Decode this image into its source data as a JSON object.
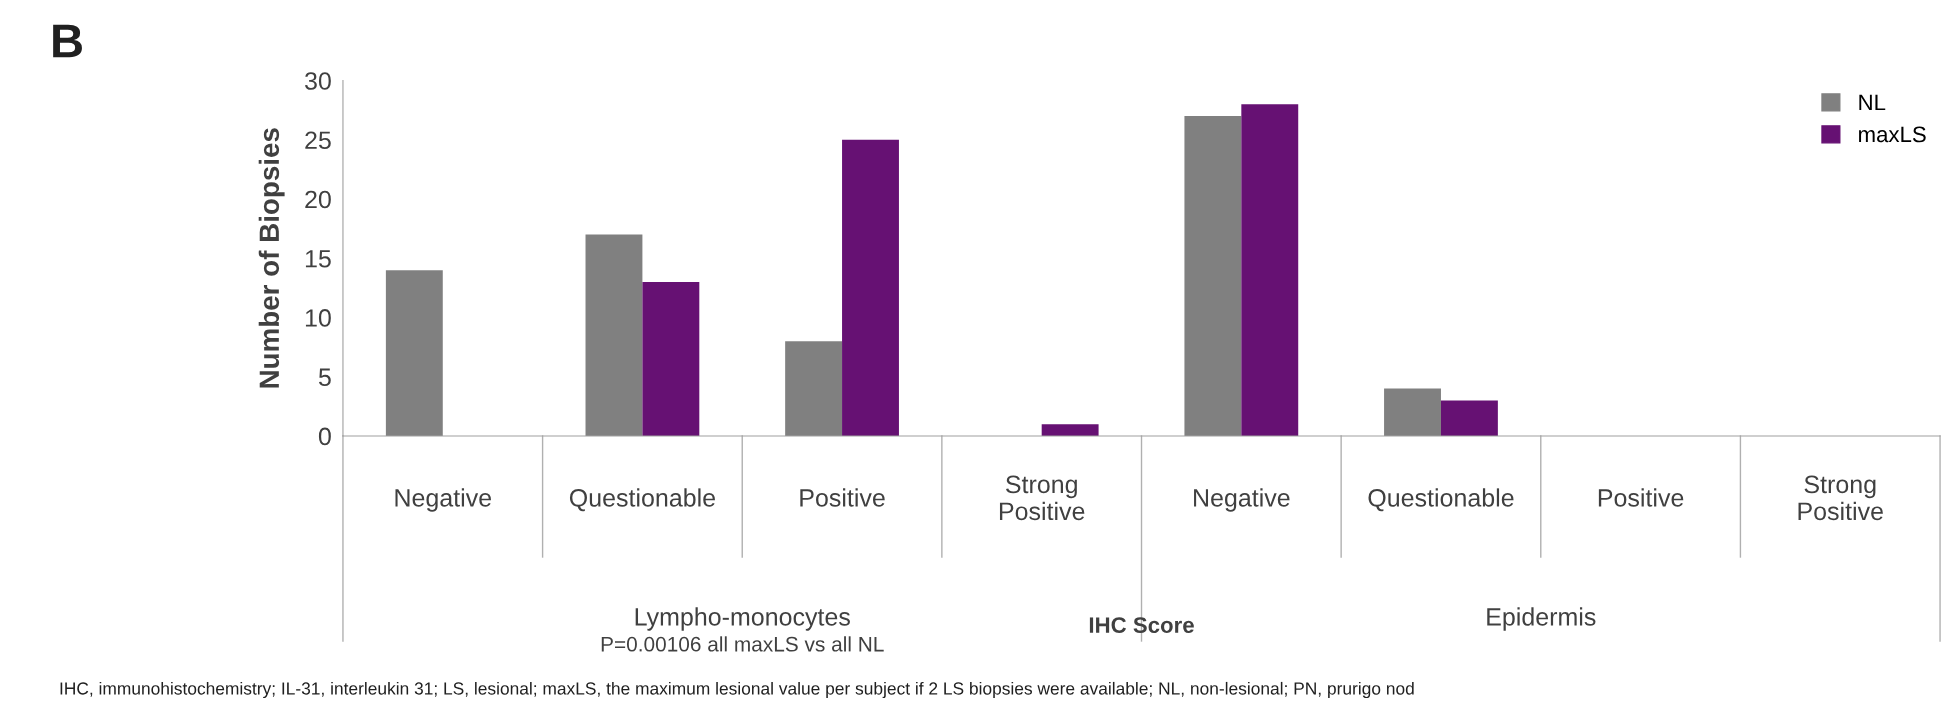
{
  "chart_data": {
    "type": "bar",
    "categories": [
      "Negative",
      "Questionable",
      "Positive",
      "Strong\nPositive",
      "Negative",
      "Questionable",
      "Positive",
      "Strong\nPositive"
    ],
    "series": [
      {
        "name": "NL",
        "color": "#808080",
        "values": [
          14,
          17,
          8,
          0,
          27,
          4,
          0,
          0
        ]
      },
      {
        "name": "maxLS",
        "color": "#661173",
        "values": [
          0,
          13,
          25,
          1,
          28,
          3,
          0,
          0
        ]
      }
    ],
    "xlabel": "IHC Score",
    "ylabel": "Number of Biopsies",
    "ylim": [
      0,
      30
    ],
    "yticks": [
      0,
      5,
      10,
      15,
      20,
      25,
      30
    ],
    "legend": "top right",
    "grid": false,
    "annotations": [
      "B",
      "Lympho-monocytes",
      "P=0.00106 all maxLS vs all NL",
      "Epidermis",
      "IHC, immunohistochemistry; IL-31, interleukin 31; LS, lesional; maxLS, the maximum lesional value per subject if 2 LS biopsies were available; NL, non-lesional; PN, prurigo nod"
    ]
  }
}
